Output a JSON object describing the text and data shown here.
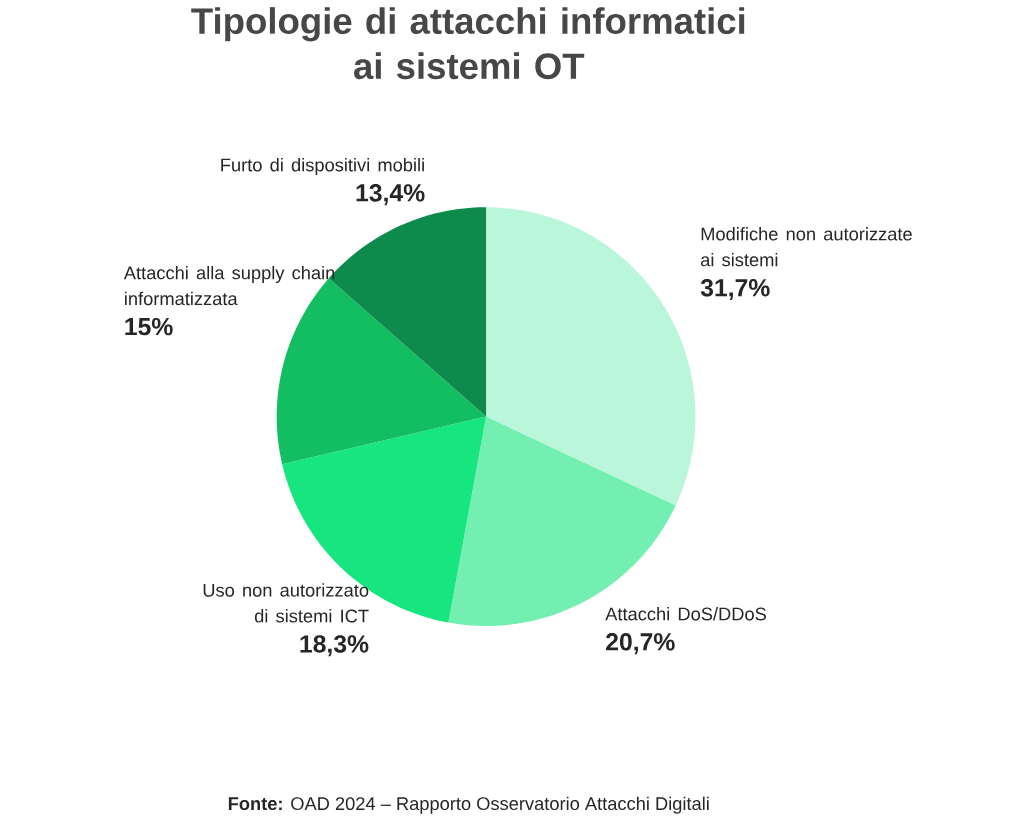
{
  "chart_data": {
    "type": "pie",
    "title": "Tipologie di attacchi informatici\nai sistemi OT",
    "categories": [
      "Modifiche non autorizzate\nai sistemi",
      "Attacchi DoS/DDoS",
      "Uso non autorizzato\ndi sistemi ICT",
      "Attacchi alla supply chain\ninformatizzata",
      "Furto di dispositivi mobili"
    ],
    "values": [
      31.7,
      20.7,
      18.3,
      15,
      13.4
    ],
    "value_labels": [
      "31,7%",
      "20,7%",
      "18,3%",
      "15%",
      "13,4%"
    ],
    "colors": [
      "#baf7da",
      "#74efb2",
      "#17e57f",
      "#13be63",
      "#0d8a4c"
    ],
    "annotations": [
      "**Fonte:** OAD 2024 – Rapporto Osservatorio Attacchi Digitali"
    ]
  }
}
